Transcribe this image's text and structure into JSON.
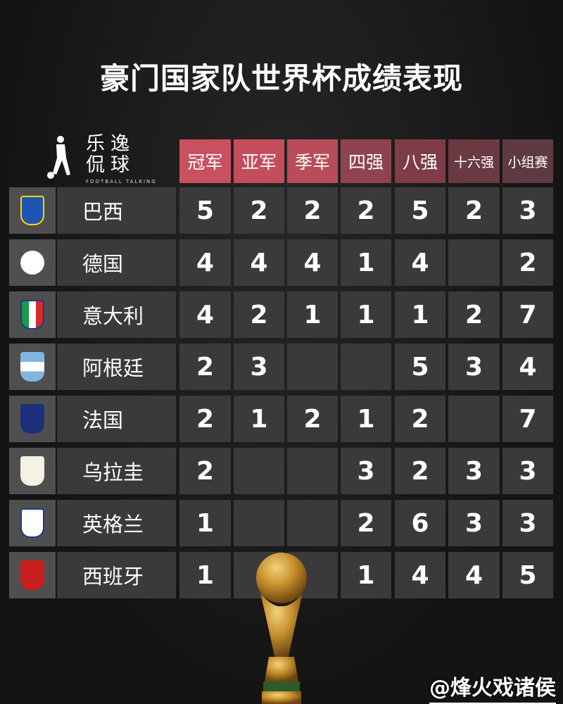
{
  "title": "豪门国家队世界杯成绩表现",
  "brand": {
    "name_line1": "乐逸",
    "name_line2": "侃球",
    "subtitle": "FOOTBALL TALKING"
  },
  "columns": [
    "冠军",
    "亚军",
    "季军",
    "四强",
    "八强",
    "十六强",
    "小组赛"
  ],
  "header_colors": [
    "#c9505f",
    "#c44d5c",
    "#b84c5a",
    "#8f4350",
    "#7d3c48",
    "#6a3a43",
    "#5e3a40"
  ],
  "rows": [
    {
      "team": "巴西",
      "crest": "brazil-crest",
      "values": [
        "5",
        "2",
        "2",
        "2",
        "5",
        "2",
        "3"
      ]
    },
    {
      "team": "德国",
      "crest": "germany-crest",
      "values": [
        "4",
        "4",
        "4",
        "1",
        "4",
        "",
        "2"
      ]
    },
    {
      "team": "意大利",
      "crest": "italy-crest",
      "values": [
        "4",
        "2",
        "1",
        "1",
        "1",
        "2",
        "7"
      ]
    },
    {
      "team": "阿根廷",
      "crest": "argentina-crest",
      "values": [
        "2",
        "3",
        "",
        "",
        "5",
        "3",
        "4"
      ]
    },
    {
      "team": "法国",
      "crest": "france-crest",
      "values": [
        "2",
        "1",
        "2",
        "1",
        "2",
        "",
        "7"
      ]
    },
    {
      "team": "乌拉圭",
      "crest": "uruguay-crest",
      "values": [
        "2",
        "",
        "",
        "3",
        "2",
        "3",
        "3"
      ]
    },
    {
      "team": "英格兰",
      "crest": "england-crest",
      "values": [
        "1",
        "",
        "",
        "2",
        "6",
        "3",
        "3"
      ]
    },
    {
      "team": "西班牙",
      "crest": "spain-crest",
      "values": [
        "1",
        "",
        "",
        "1",
        "4",
        "4",
        "5"
      ]
    }
  ],
  "watermark": "@烽火戏诸侯"
}
